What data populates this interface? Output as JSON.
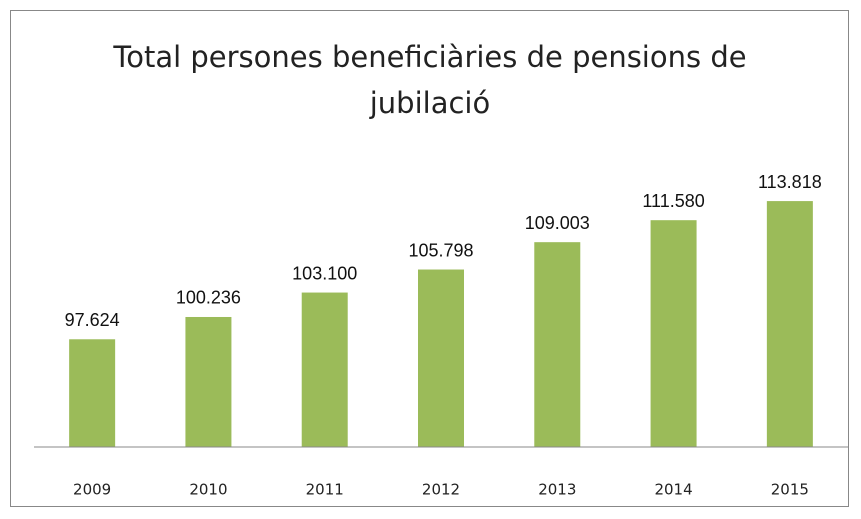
{
  "chart_data": {
    "type": "bar",
    "title": "Total persones beneficiàries de pensions de jubilació",
    "categories": [
      "2009",
      "2010",
      "2011",
      "2012",
      "2013",
      "2014",
      "2015"
    ],
    "values": [
      97624,
      100236,
      103100,
      105798,
      109003,
      111580,
      113818
    ],
    "value_labels": [
      "97.624",
      "100.236",
      "103.100",
      "105.798",
      "109.003",
      "111.580",
      "113.818"
    ],
    "color": "#9bbb59",
    "ylim": [
      85000,
      115000
    ]
  }
}
